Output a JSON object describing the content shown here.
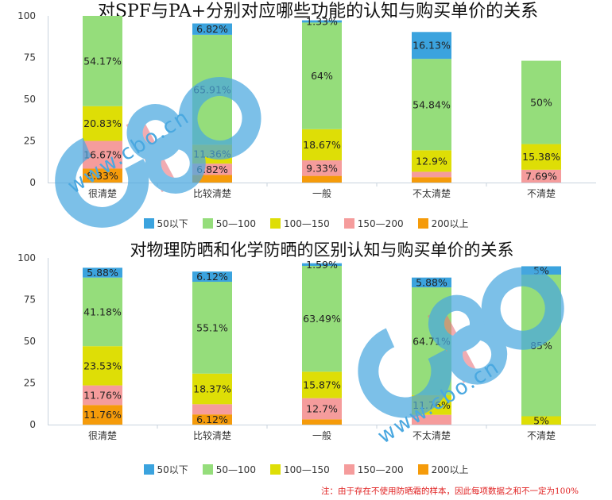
{
  "colors": {
    "50以下": "#3ba3de",
    "50—100": "#95dd7b",
    "100—150": "#dede06",
    "150—200": "#f59c9c",
    "200以上": "#f59b0a",
    "axis": "#c8d3de",
    "footnote": "#e02020",
    "watermark_blue": "#4aa8e0",
    "watermark_red": "#e8707a"
  },
  "legend": [
    "50以下",
    "50—100",
    "100—150",
    "150—200",
    "200以上"
  ],
  "chart_data": [
    {
      "type": "bar",
      "stacked": true,
      "title": "对SPF与PA+分别对应哪些功能的认知与购买单价的关系",
      "categories": [
        "很清楚",
        "比较清楚",
        "一般",
        "不太清楚",
        "不清楚"
      ],
      "ylim": [
        0,
        100
      ],
      "yticks": [
        "0",
        "25",
        "50",
        "75",
        "100"
      ],
      "grid": false,
      "legend_position": "bottom",
      "series": [
        {
          "name": "200以上",
          "values": [
            8.33,
            4.55,
            4.0,
            3.23,
            0
          ],
          "labels": [
            "8.33%",
            "",
            "",
            "",
            ""
          ]
        },
        {
          "name": "150—200",
          "values": [
            16.67,
            6.82,
            9.33,
            3.23,
            7.69
          ],
          "labels": [
            "16.67%",
            "6.82%",
            "9.33%",
            "",
            "7.69%"
          ]
        },
        {
          "name": "100—150",
          "values": [
            20.83,
            11.36,
            18.67,
            12.9,
            15.38
          ],
          "labels": [
            "20.83%",
            "11.36%",
            "18.67%",
            "12.9%",
            "15.38%"
          ]
        },
        {
          "name": "50—100",
          "values": [
            54.17,
            65.91,
            64,
            54.84,
            50
          ],
          "labels": [
            "54.17%",
            "65.91%",
            "64%",
            "54.84%",
            "50%"
          ]
        },
        {
          "name": "50以下",
          "values": [
            0,
            6.82,
            1.33,
            16.13,
            0
          ],
          "labels": [
            "",
            "6.82%",
            "1.33%",
            "16.13%",
            ""
          ]
        }
      ]
    },
    {
      "type": "bar",
      "stacked": true,
      "title": "对物理防晒和化学防晒的区别认知与购买单价的关系",
      "categories": [
        "很清楚",
        "比较清楚",
        "一般",
        "不太清楚",
        "不清楚"
      ],
      "ylim": [
        0,
        100
      ],
      "yticks": [
        "0",
        "25",
        "50",
        "75",
        "100"
      ],
      "grid": false,
      "legend_position": "bottom",
      "series": [
        {
          "name": "200以上",
          "values": [
            11.76,
            6.12,
            3.17,
            0,
            0
          ],
          "labels": [
            "11.76%",
            "6.12%",
            "",
            "",
            ""
          ]
        },
        {
          "name": "150—200",
          "values": [
            11.76,
            6.12,
            12.7,
            5.88,
            0
          ],
          "labels": [
            "11.76%",
            "",
            "12.7%",
            "",
            ""
          ]
        },
        {
          "name": "100—150",
          "values": [
            23.53,
            18.37,
            15.87,
            11.76,
            5
          ],
          "labels": [
            "23.53%",
            "18.37%",
            "15.87%",
            "11.76%",
            "5%"
          ]
        },
        {
          "name": "50—100",
          "values": [
            41.18,
            55.1,
            63.49,
            64.71,
            85
          ],
          "labels": [
            "41.18%",
            "55.1%",
            "63.49%",
            "64.71%",
            "85%"
          ]
        },
        {
          "name": "50以下",
          "values": [
            5.88,
            6.12,
            1.59,
            5.88,
            5
          ],
          "labels": [
            "5.88%",
            "6.12%",
            "1.59%",
            "5.88%",
            "5%"
          ]
        }
      ]
    }
  ],
  "footnote": "注：由于存在不使用防晒霜的样本，因此每项数据之和不一定为100%",
  "watermark": {
    "logo": "CBO",
    "url": "www.cbo.cn"
  }
}
